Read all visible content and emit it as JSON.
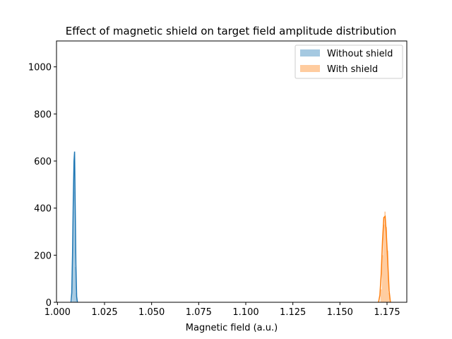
{
  "chart_data": {
    "type": "histogram",
    "title": "Effect of magnetic shield on target field amplitude distribution",
    "xlabel": "Magnetic field (a.u.)",
    "ylabel": "",
    "xlim": [
      0.9995,
      1.1855
    ],
    "ylim": [
      0,
      1110
    ],
    "xticks": [
      1.0,
      1.025,
      1.05,
      1.075,
      1.1,
      1.125,
      1.15,
      1.175
    ],
    "xtick_labels": [
      "1.000",
      "1.025",
      "1.050",
      "1.075",
      "1.100",
      "1.125",
      "1.150",
      "1.175"
    ],
    "yticks": [
      0,
      200,
      400,
      600,
      800,
      1000
    ],
    "ytick_labels": [
      "0",
      "200",
      "400",
      "600",
      "800",
      "1000"
    ],
    "grid": false,
    "legend_position": "top-right",
    "series": [
      {
        "name": "Without shield",
        "color": "#1f77b4",
        "hist_bins": [
          {
            "x0": 1.0078,
            "x1": 1.0082,
            "value": 200
          },
          {
            "x0": 1.0082,
            "x1": 1.0086,
            "value": 385
          },
          {
            "x0": 1.0086,
            "x1": 1.009,
            "value": 555
          },
          {
            "x0": 1.009,
            "x1": 1.0094,
            "value": 470
          },
          {
            "x0": 1.0094,
            "x1": 1.0098,
            "value": 150
          },
          {
            "x0": 1.0098,
            "x1": 1.0102,
            "value": 40
          }
        ],
        "kde": {
          "x": [
            1.0072,
            1.0076,
            1.008,
            1.0084,
            1.0088,
            1.0091,
            1.0094,
            1.0098,
            1.0102,
            1.0106
          ],
          "y": [
            0,
            40,
            200,
            430,
            600,
            640,
            430,
            160,
            25,
            0
          ]
        }
      },
      {
        "name": "With shield",
        "color": "#ff7f0e",
        "hist_bins": [
          {
            "x0": 1.1715,
            "x1": 1.1722,
            "value": 55
          },
          {
            "x0": 1.1722,
            "x1": 1.1729,
            "value": 200
          },
          {
            "x0": 1.1729,
            "x1": 1.1736,
            "value": 330
          },
          {
            "x0": 1.1736,
            "x1": 1.1743,
            "value": 385
          },
          {
            "x0": 1.1743,
            "x1": 1.175,
            "value": 320
          },
          {
            "x0": 1.175,
            "x1": 1.1757,
            "value": 220
          },
          {
            "x0": 1.1757,
            "x1": 1.1764,
            "value": 40
          }
        ],
        "kde": {
          "x": [
            1.1705,
            1.1712,
            1.1719,
            1.1726,
            1.1733,
            1.174,
            1.1747,
            1.1754,
            1.1761,
            1.1768
          ],
          "y": [
            0,
            30,
            120,
            260,
            360,
            365,
            280,
            170,
            50,
            0
          ]
        }
      }
    ]
  }
}
